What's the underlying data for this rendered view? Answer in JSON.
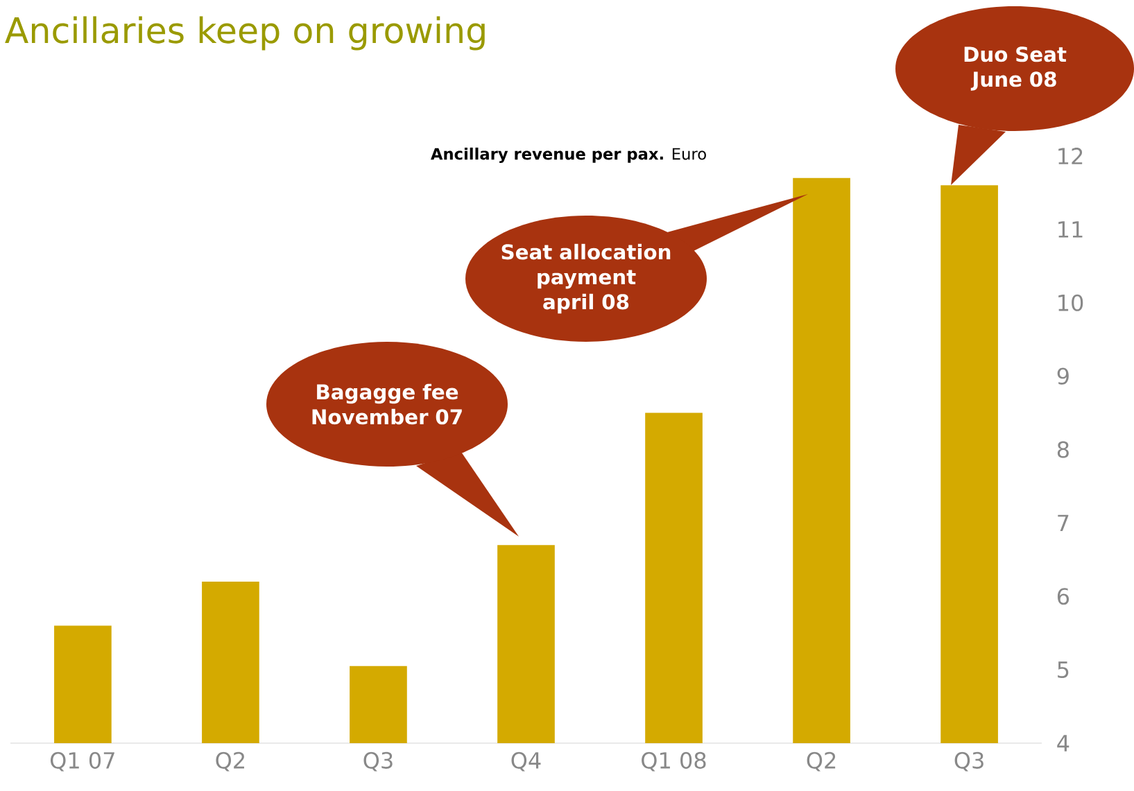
{
  "chart_data": {
    "type": "bar",
    "title": "Ancillaries keep on growing",
    "subtitle": "**Ancillary revenue per pax.** Euro",
    "categories": [
      "Q1  07",
      "Q2",
      "Q3",
      "Q4",
      "Q1  08",
      "Q2",
      "Q3"
    ],
    "values": [
      5.6,
      6.2,
      5.05,
      6.7,
      8.5,
      11.7,
      11.6
    ],
    "color": "#d4aa00",
    "ylim": [
      4,
      12
    ],
    "yticks": [
      4,
      5,
      6,
      7,
      8,
      9,
      10,
      11,
      12
    ],
    "annotations": [
      "Bagagge fee\nNovember 07",
      "Seat allocation\npayment\napril 08",
      "Duo Seat\nJune 08"
    ]
  }
}
